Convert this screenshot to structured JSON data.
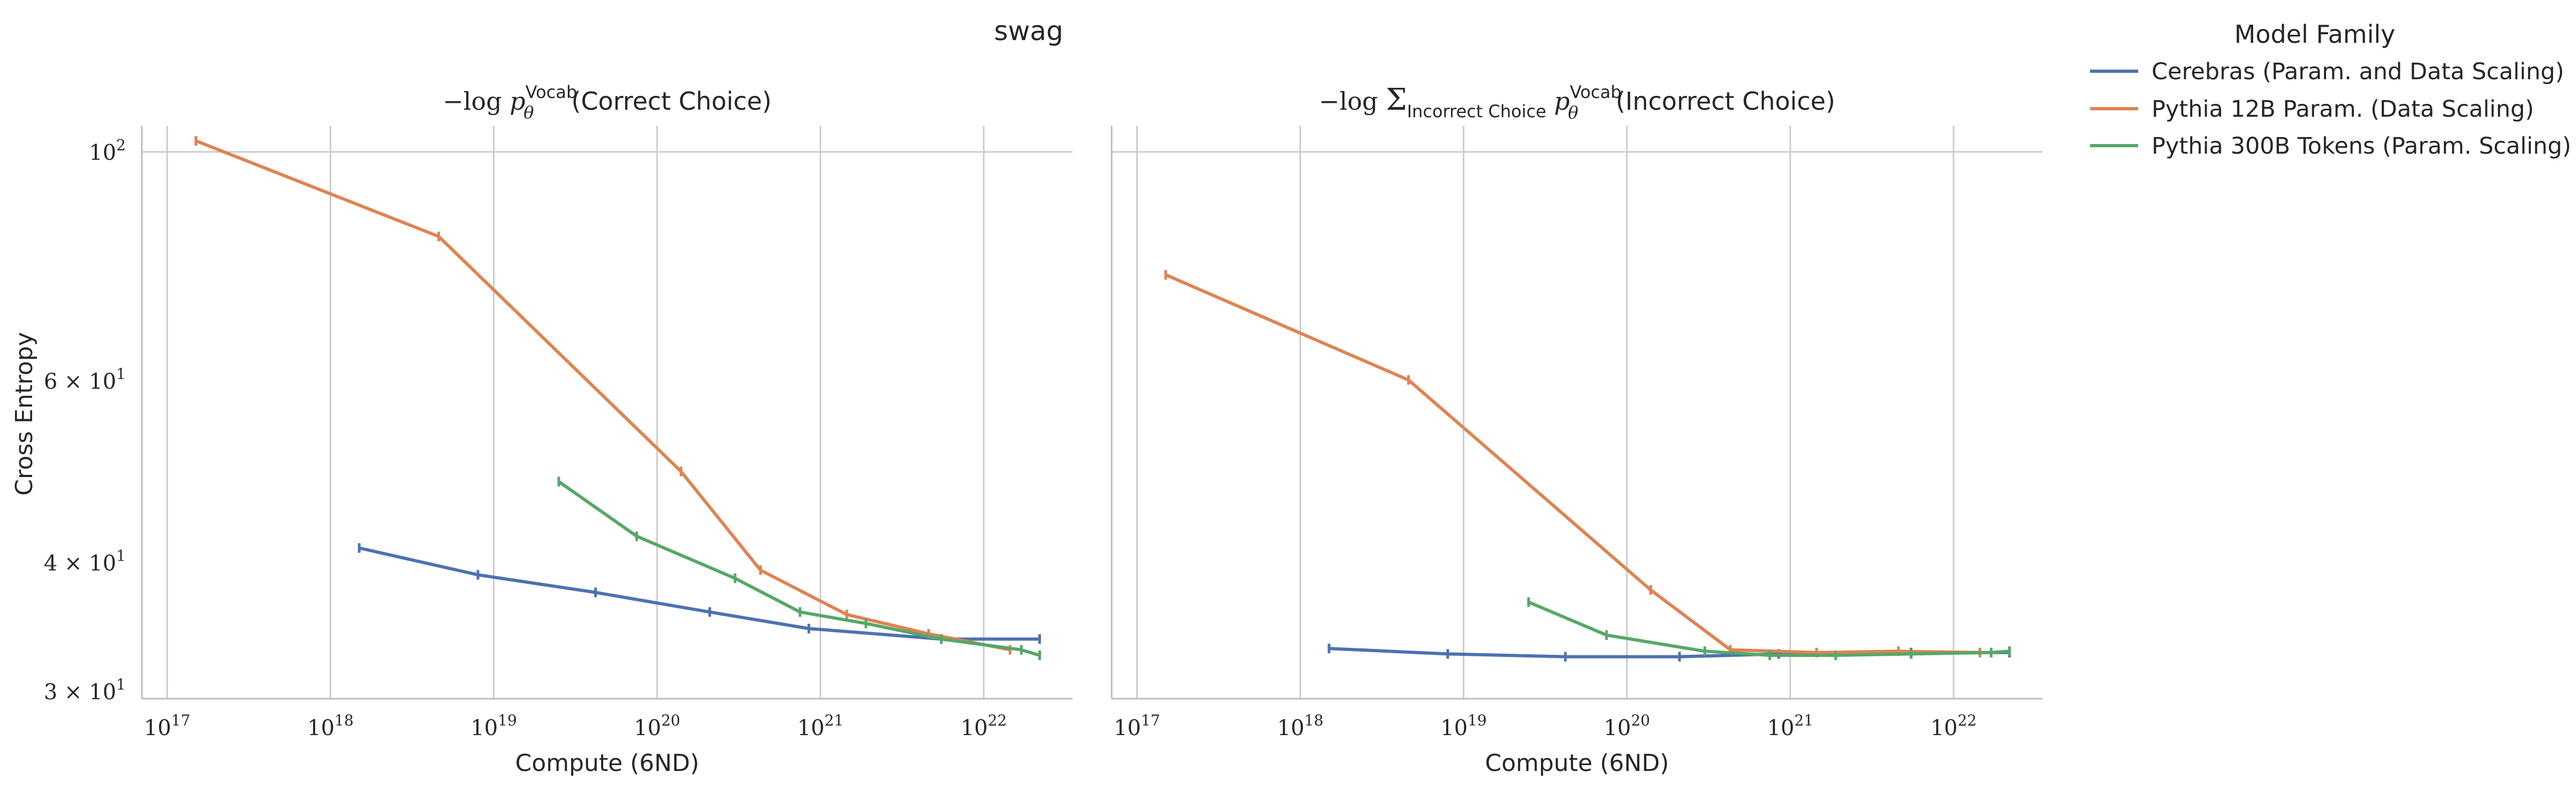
{
  "figure": {
    "suptitle": "swag",
    "ylabel": "Cross Entropy"
  },
  "legend": {
    "title": "Model Family",
    "placement": "upper right, outside the axes",
    "entries": [
      {
        "label": "Cerebras (Param. and Data Scaling)",
        "color": "#4c72b0"
      },
      {
        "label": "Pythia 12B Param. (Data Scaling)",
        "color": "#dd8452"
      },
      {
        "label": "Pythia 300B Tokens (Param. Scaling)",
        "color": "#55a868"
      }
    ]
  },
  "chart_data": [
    {
      "type": "line",
      "title": "−log p_θ^Vocab(Correct Choice)",
      "title_parts": {
        "prefix": "−log",
        "symbol": "p",
        "sub": "θ",
        "sup": "Vocab",
        "rest": "(Correct Choice)"
      },
      "xlabel": "Compute (6ND)",
      "ylabel": "Cross Entropy",
      "xscale": "log",
      "yscale": "log",
      "xlim": [
        7e+16,
        3.5e+22
      ],
      "ylim": [
        29.5,
        106
      ],
      "x_ticks": [
        {
          "base": "10",
          "exp": "17"
        },
        {
          "base": "10",
          "exp": "18"
        },
        {
          "base": "10",
          "exp": "19"
        },
        {
          "base": "10",
          "exp": "20"
        },
        {
          "base": "10",
          "exp": "21"
        },
        {
          "base": "10",
          "exp": "22"
        }
      ],
      "y_ticks": [
        {
          "coef": "3 × ",
          "base": "10",
          "exp": "1"
        },
        {
          "coef": "4 × ",
          "base": "10",
          "exp": "1"
        },
        {
          "coef": "6 × ",
          "base": "10",
          "exp": "1"
        },
        {
          "coef": "",
          "base": "10",
          "exp": "2"
        }
      ],
      "grid": true,
      "series": [
        {
          "name": "Cerebras (Param. and Data Scaling)",
          "color": "#4c72b0",
          "x": [
            1.5e+18,
            8e+18,
            4.2e+19,
            2.1e+20,
            8.5e+20,
            5.5e+21,
            2.2e+22
          ],
          "y": [
            41.3,
            38.9,
            37.4,
            35.8,
            34.5,
            33.7,
            33.7
          ]
        },
        {
          "name": "Pythia 12B Param. (Data Scaling)",
          "color": "#dd8452",
          "x": [
            1.5e+17,
            4.6e+18,
            1.4e+20,
            4.3e+20,
            1.45e+21,
            4.6e+21,
            1.45e+22
          ],
          "y": [
            102.5,
            82.8,
            49.0,
            39.3,
            35.6,
            34.1,
            32.9
          ]
        },
        {
          "name": "Pythia 300B Tokens (Param. Scaling)",
          "color": "#55a868",
          "x": [
            2.5e+19,
            7.5e+19,
            3e+20,
            7.5e+20,
            1.9e+21,
            5.5e+21,
            1.7e+22,
            2.2e+22
          ],
          "y": [
            47.9,
            42.4,
            38.6,
            35.8,
            34.9,
            33.7,
            32.9,
            32.5
          ]
        }
      ]
    },
    {
      "type": "line",
      "title": "−log Σ_Incorrect Choice p_θ^Vocab(Incorrect Choice)",
      "title_parts": {
        "prefix": "−log",
        "sum": "Σ",
        "sum_sub": "Incorrect Choice",
        "symbol": "p",
        "sub": "θ",
        "sup": "Vocab",
        "rest": "(Incorrect Choice)"
      },
      "xlabel": "Compute (6ND)",
      "ylabel": "Cross Entropy",
      "xscale": "log",
      "yscale": "log",
      "xlim": [
        7e+16,
        3.5e+22
      ],
      "ylim": [
        29.5,
        106
      ],
      "x_ticks": [
        {
          "base": "10",
          "exp": "17"
        },
        {
          "base": "10",
          "exp": "18"
        },
        {
          "base": "10",
          "exp": "19"
        },
        {
          "base": "10",
          "exp": "20"
        },
        {
          "base": "10",
          "exp": "21"
        },
        {
          "base": "10",
          "exp": "22"
        }
      ],
      "grid": true,
      "series": [
        {
          "name": "Cerebras (Param. and Data Scaling)",
          "color": "#4c72b0",
          "x": [
            1.5e+18,
            8e+18,
            4.2e+19,
            2.1e+20,
            8.5e+20,
            5.5e+21,
            2.2e+22
          ],
          "y": [
            33.0,
            32.6,
            32.4,
            32.4,
            32.6,
            32.7,
            32.7
          ]
        },
        {
          "name": "Pythia 12B Param. (Data Scaling)",
          "color": "#dd8452",
          "x": [
            1.5e+17,
            4.6e+18,
            1.4e+20,
            4.3e+20,
            1.45e+21,
            4.6e+21,
            1.45e+22
          ],
          "y": [
            76.0,
            60.1,
            37.6,
            32.9,
            32.7,
            32.8,
            32.7
          ]
        },
        {
          "name": "Pythia 300B Tokens (Param. Scaling)",
          "color": "#55a868",
          "x": [
            2.5e+19,
            7.5e+19,
            3e+20,
            7.5e+20,
            1.9e+21,
            5.5e+21,
            1.7e+22,
            2.2e+22
          ],
          "y": [
            36.6,
            34.0,
            32.8,
            32.5,
            32.5,
            32.6,
            32.7,
            32.8
          ]
        }
      ]
    }
  ]
}
